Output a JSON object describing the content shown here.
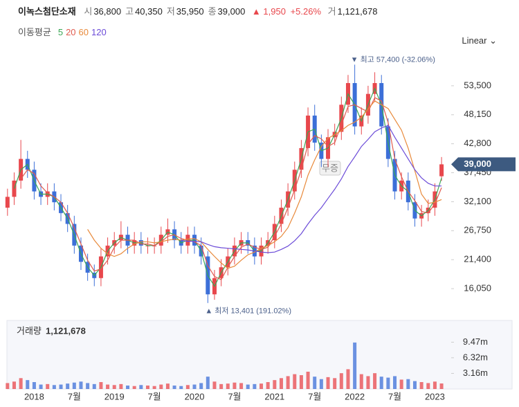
{
  "header": {
    "name": "이녹스첨단소재",
    "quotes": [
      {
        "label": "시",
        "value": "36,800"
      },
      {
        "label": "고",
        "value": "40,350"
      },
      {
        "label": "저",
        "value": "35,950"
      },
      {
        "label": "종",
        "value": "39,000"
      }
    ],
    "change": "▲ 1,950",
    "change_pct": "+5.26%",
    "volume_label": "거",
    "volume_value": "1,121,678"
  },
  "ma_title": "이동평균",
  "scale_button": "Linear",
  "chart_data": {
    "type": "candlestick",
    "categories": [
      null,
      null,
      null,
      null,
      "2018",
      null,
      null,
      null,
      null,
      null,
      "7월",
      null,
      null,
      null,
      null,
      null,
      "2019",
      null,
      null,
      null,
      null,
      null,
      "7월",
      null,
      null,
      null,
      null,
      null,
      "2020",
      null,
      null,
      null,
      null,
      null,
      "7월",
      null,
      null,
      null,
      null,
      null,
      "2021",
      null,
      null,
      null,
      null,
      null,
      "7월",
      null,
      null,
      null,
      null,
      null,
      "2022",
      null,
      null,
      null,
      null,
      null,
      "7월",
      null,
      null,
      null,
      null,
      null,
      "2023",
      null
    ],
    "open": [
      31000,
      33000,
      36000,
      40000,
      38000,
      34000,
      33000,
      34000,
      32000,
      30000,
      28000,
      24000,
      21000,
      19000,
      18000,
      22000,
      24000,
      25000,
      26000,
      24000,
      25000,
      24000,
      24000,
      24000,
      26000,
      27000,
      25000,
      24000,
      26000,
      24000,
      22000,
      15000,
      18000,
      20000,
      22000,
      24000,
      25000,
      24000,
      22000,
      24000,
      25000,
      28000,
      31000,
      34000,
      38000,
      42000,
      48000,
      43000,
      40000,
      44000,
      45000,
      50000,
      54000,
      46000,
      48000,
      52000,
      54000,
      46000,
      40000,
      34000,
      36000,
      32000,
      29000,
      30000,
      31000,
      36800
    ],
    "high": [
      34500,
      37500,
      43500,
      41500,
      39500,
      35500,
      35500,
      35500,
      33500,
      31500,
      29500,
      25500,
      22500,
      20500,
      23500,
      25500,
      26500,
      28500,
      27500,
      26500,
      26500,
      25500,
      25500,
      27500,
      29000,
      28500,
      26500,
      27500,
      27500,
      25500,
      23000,
      19500,
      21500,
      23500,
      25500,
      26500,
      26500,
      25500,
      25500,
      26500,
      29500,
      32500,
      35500,
      39500,
      43500,
      49500,
      50000,
      44500,
      45500,
      46500,
      51500,
      55500,
      57400,
      49500,
      53500,
      56000,
      55500,
      47500,
      41500,
      37500,
      37500,
      33500,
      31500,
      32500,
      35500,
      40350
    ],
    "low": [
      29500,
      31500,
      34500,
      36500,
      32500,
      31500,
      31500,
      30500,
      28500,
      26500,
      22500,
      19500,
      17500,
      16500,
      16500,
      20500,
      22500,
      23500,
      22500,
      22500,
      22500,
      22500,
      22500,
      22500,
      24500,
      23500,
      22500,
      22500,
      22500,
      20500,
      13401,
      14000,
      16500,
      18500,
      20500,
      22500,
      22500,
      20500,
      20500,
      22500,
      23500,
      26500,
      29500,
      32500,
      36500,
      40500,
      41500,
      38500,
      38500,
      42500,
      43500,
      48500,
      44500,
      44500,
      46500,
      50500,
      44500,
      38500,
      32500,
      32500,
      30500,
      27500,
      27500,
      28500,
      29500,
      35950
    ],
    "close": [
      33000,
      36000,
      40000,
      38000,
      34000,
      33000,
      34000,
      32000,
      30000,
      28000,
      24000,
      21000,
      19000,
      18000,
      22000,
      24000,
      25000,
      26000,
      24000,
      25000,
      24000,
      24000,
      24000,
      26000,
      27000,
      25000,
      24000,
      26000,
      24000,
      22000,
      15000,
      18000,
      20000,
      22000,
      24000,
      25000,
      24000,
      22000,
      24000,
      25000,
      28000,
      31000,
      34000,
      38000,
      42000,
      48000,
      43000,
      40000,
      44000,
      45000,
      50000,
      54000,
      46000,
      48000,
      52000,
      54000,
      46000,
      40000,
      34000,
      36000,
      32000,
      29000,
      30000,
      31000,
      34000,
      39000
    ],
    "up_color": "#e8474c",
    "down_color": "#3c6fd8",
    "series": [
      {
        "name": "5",
        "color": "#3aa655",
        "values": [
          null,
          34500,
          38000,
          39000,
          36000,
          33500,
          33500,
          33000,
          31000,
          29000,
          26000,
          22500,
          20000,
          18500,
          20000,
          23000,
          24500,
          25500,
          25000,
          24500,
          24500,
          24000,
          24000,
          25000,
          26500,
          26000,
          24500,
          25000,
          25000,
          23000,
          18500,
          16500,
          19000,
          21000,
          23000,
          24500,
          24500,
          23000,
          23000,
          24500,
          26500,
          29500,
          32500,
          36000,
          40000,
          45000,
          45500,
          41500,
          42000,
          44500,
          47500,
          52000,
          50000,
          47000,
          50000,
          53000,
          50000,
          43000,
          37000,
          35000,
          34000,
          30500,
          29500,
          30500,
          32500,
          36500
        ]
      },
      {
        "name": "20",
        "color": "#e05a4e",
        "values": [
          null,
          null,
          36300,
          38000,
          37300,
          35000,
          33700,
          33000,
          32000,
          30000,
          27300,
          24300,
          21300,
          19300,
          19700,
          21300,
          23700,
          25000,
          25000,
          25000,
          24300,
          24300,
          24000,
          24700,
          25700,
          26000,
          25300,
          25000,
          24700,
          24000,
          20300,
          18300,
          17700,
          20000,
          22000,
          23700,
          24300,
          23700,
          23300,
          23700,
          25700,
          28000,
          31000,
          34300,
          38000,
          42700,
          44300,
          43700,
          42300,
          43000,
          46300,
          49700,
          50000,
          49300,
          48700,
          51300,
          50700,
          46700,
          40000,
          36700,
          34000,
          32300,
          30300,
          30000,
          31700,
          34700
        ]
      },
      {
        "name": "60",
        "color": "#e8893a",
        "values": [
          null,
          null,
          null,
          null,
          null,
          null,
          null,
          null,
          null,
          null,
          null,
          null,
          27000,
          25000,
          23500,
          22500,
          22000,
          22500,
          23500,
          24300,
          24700,
          24700,
          24500,
          24700,
          25000,
          25200,
          25000,
          25200,
          25300,
          24700,
          23300,
          22000,
          20800,
          19800,
          20200,
          21300,
          22300,
          22800,
          23500,
          24000,
          24700,
          25700,
          27300,
          30000,
          33000,
          37000,
          39800,
          42300,
          43800,
          44500,
          45200,
          46200,
          46800,
          47700,
          49200,
          50700,
          50000,
          49300,
          47300,
          45300,
          42000,
          37800,
          33500,
          31800,
          32000,
          32500
        ]
      },
      {
        "name": "120",
        "color": "#6b4bd8",
        "values": [
          null,
          null,
          null,
          null,
          null,
          null,
          null,
          null,
          null,
          null,
          null,
          null,
          null,
          null,
          null,
          null,
          null,
          null,
          null,
          null,
          null,
          null,
          null,
          null,
          null,
          null,
          25000,
          24800,
          24800,
          24700,
          24200,
          23800,
          23600,
          23500,
          23400,
          23300,
          23200,
          23000,
          22800,
          22700,
          22800,
          23300,
          23900,
          24900,
          26200,
          28000,
          29600,
          31000,
          32700,
          34400,
          36300,
          38600,
          40400,
          42300,
          43600,
          45000,
          45700,
          46200,
          44000,
          42000,
          40000,
          38000,
          36500,
          35500,
          35000,
          35000
        ]
      }
    ],
    "ylim": [
      11200,
      59750
    ],
    "yticks": [
      {
        "value": 16050,
        "label": "16,050"
      },
      {
        "value": 21400,
        "label": "21,400"
      },
      {
        "value": 26750,
        "label": "26,750"
      },
      {
        "value": 32100,
        "label": "32,100"
      },
      {
        "value": 37450,
        "label": "37,450"
      },
      {
        "value": 42800,
        "label": "42,800"
      },
      {
        "value": 48150,
        "label": "48,150"
      },
      {
        "value": 53500,
        "label": "53,500"
      }
    ],
    "last_price_label": "39,000",
    "high_label": "▼ 최고 57,400 (-32.06%)",
    "low_label": "▲ 최저 13,401 (191.02%)",
    "event_label": "무증",
    "volume": {
      "label": "거래량",
      "last_label": "1,121,678",
      "ylim": [
        0,
        14000000
      ],
      "yticks": [
        {
          "value": 3160000,
          "label": "3.16m"
        },
        {
          "value": 6320000,
          "label": "6.32m"
        },
        {
          "value": 9470000,
          "label": "9.47m"
        }
      ],
      "values": [
        1200000,
        1500000,
        2200000,
        1800000,
        1400000,
        900000,
        1000000,
        800000,
        900000,
        1100000,
        1300000,
        1500000,
        1200000,
        1000000,
        1400000,
        900000,
        800000,
        1000000,
        700000,
        600000,
        800000,
        700000,
        600000,
        900000,
        1100000,
        700000,
        600000,
        800000,
        900000,
        1200000,
        2500000,
        1500000,
        1000000,
        1100000,
        1300000,
        1200000,
        900000,
        1000000,
        1100000,
        1400000,
        1800000,
        2200000,
        2600000,
        3000000,
        2800000,
        3500000,
        2500000,
        2000000,
        2400000,
        2200000,
        3200000,
        4000000,
        9400000,
        3000000,
        2600000,
        3200000,
        2500000,
        2300000,
        2600000,
        1900000,
        2000000,
        1600000,
        1400000,
        1200000,
        1500000,
        1121678
      ]
    }
  }
}
